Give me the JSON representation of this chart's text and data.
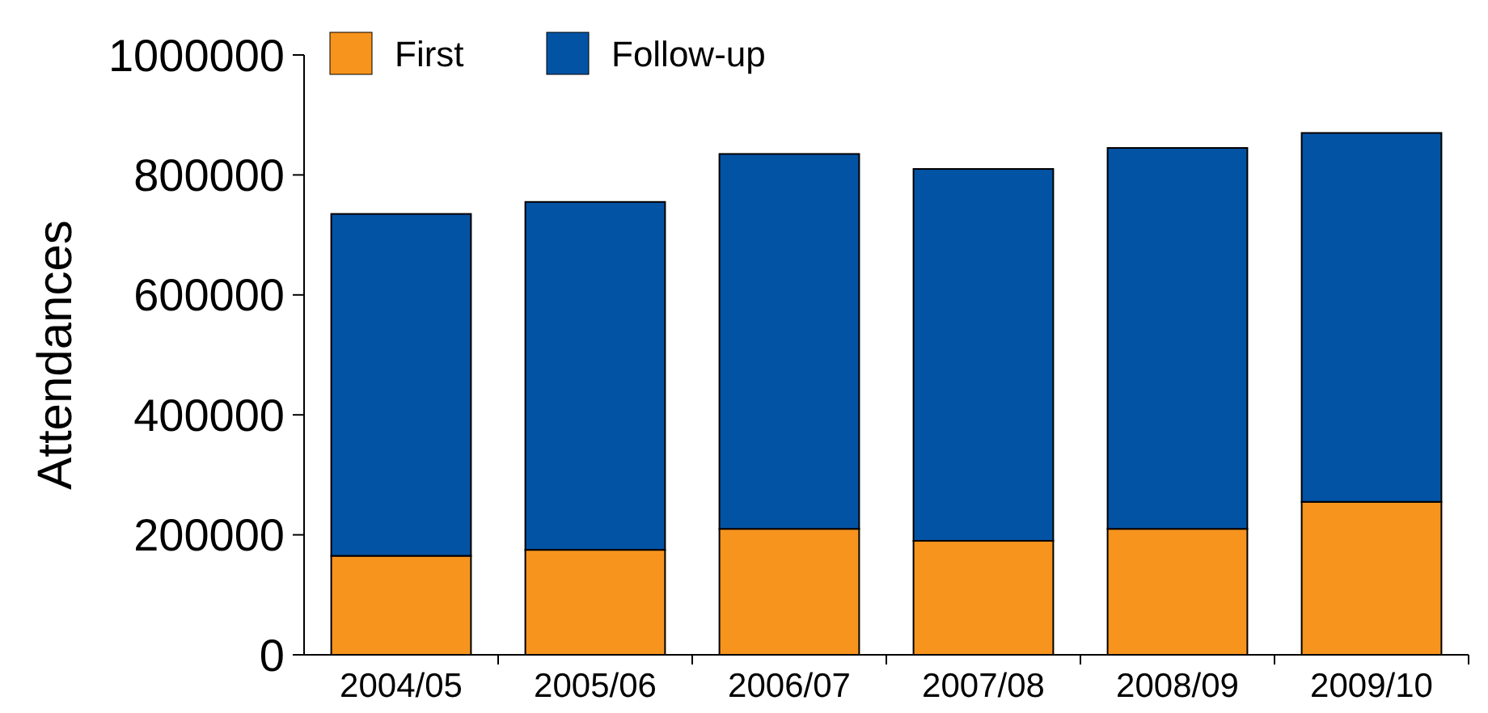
{
  "chart_data": {
    "type": "bar",
    "ylabel": "Attendances",
    "stacked": true,
    "categories": [
      "2004/05",
      "2005/06",
      "2006/07",
      "2007/08",
      "2008/09",
      "2009/10"
    ],
    "series": [
      {
        "name": "First",
        "color": "#f7941d",
        "values": [
          165000,
          175000,
          210000,
          190000,
          210000,
          255000
        ]
      },
      {
        "name": "Follow-up",
        "color": "#0353a4",
        "values": [
          570000,
          580000,
          625000,
          620000,
          635000,
          615000
        ]
      }
    ],
    "ylim": [
      0,
      1000000
    ],
    "yticks": [
      0,
      200000,
      400000,
      600000,
      800000,
      1000000
    ],
    "legend": "top left",
    "grid": false
  }
}
